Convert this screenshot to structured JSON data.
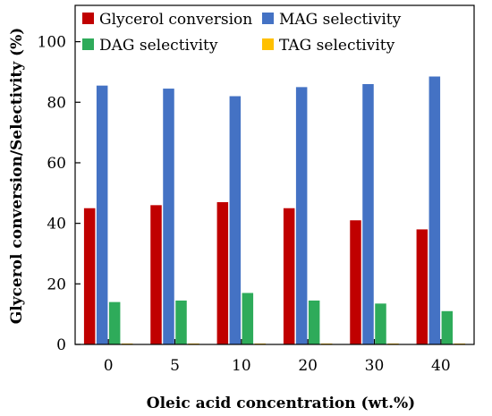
{
  "chart_data": {
    "type": "bar",
    "title": "",
    "xlabel": "Oleic acid concentration (wt.%)",
    "ylabel": "Glycerol conversion/Selectivity (%)",
    "ylim": [
      0,
      112
    ],
    "yticks": [
      0,
      20,
      40,
      60,
      80,
      100
    ],
    "grid": false,
    "legend_placement": "top, inside plot, two columns",
    "categories": [
      "0",
      "5",
      "10",
      "20",
      "30",
      "40"
    ],
    "series": [
      {
        "name": "Glycerol conversion",
        "color": "#c00000",
        "values": [
          45,
          46,
          47,
          45,
          41,
          38
        ]
      },
      {
        "name": "MAG selectivity",
        "color": "#4472c4",
        "values": [
          85.5,
          84.5,
          82,
          85,
          86,
          88.5
        ]
      },
      {
        "name": "DAG selectivity",
        "color": "#2eab5a",
        "values": [
          14,
          14.5,
          17,
          14.5,
          13.5,
          11
        ]
      },
      {
        "name": "TAG selectivity",
        "color": "#ffc000",
        "values": [
          0.3,
          0.3,
          0.3,
          0.3,
          0.3,
          0.3
        ]
      }
    ]
  }
}
